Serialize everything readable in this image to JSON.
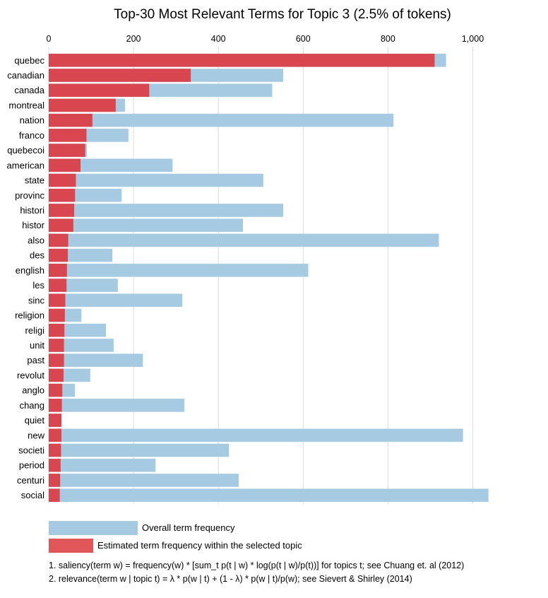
{
  "chart_data": {
    "type": "bar",
    "orientation": "horizontal",
    "stacking": "overlay",
    "title": "Top-30 Most Relevant Terms for Topic 3 (2.5% of tokens)",
    "xlabel": "",
    "ylabel": "",
    "xlim": [
      0,
      1050
    ],
    "xticks": [
      0,
      200,
      400,
      600,
      800,
      1000
    ],
    "xtick_labels": [
      "0",
      "200",
      "400",
      "600",
      "800",
      "1,000"
    ],
    "grid": true,
    "legend_position": "bottom",
    "categories": [
      "quebec",
      "canadian",
      "canada",
      "montreal",
      "nation",
      "franco",
      "quebecoi",
      "american",
      "state",
      "provinc",
      "histori",
      "histor",
      "also",
      "des",
      "english",
      "les",
      "sinc",
      "religion",
      "religi",
      "unit",
      "past",
      "revolut",
      "anglo",
      "chang",
      "quiet",
      "new",
      "societi",
      "period",
      "centuri",
      "social"
    ],
    "series": [
      {
        "name": "Overall term frequency",
        "color": "#a6cae1",
        "values": [
          937,
          553,
          527,
          180,
          813,
          188,
          90,
          292,
          506,
          172,
          553,
          458,
          920,
          150,
          612,
          163,
          315,
          77,
          135,
          153,
          222,
          98,
          62,
          320,
          30,
          977,
          425,
          252,
          448,
          1037
        ]
      },
      {
        "name": "Estimated term frequency within the selected topic",
        "color": "#d8464f",
        "values": [
          910,
          335,
          237,
          158,
          103,
          89,
          86,
          75,
          64,
          62,
          60,
          58,
          46,
          45,
          43,
          42,
          39,
          38,
          37,
          36,
          36,
          35,
          32,
          31,
          30,
          30,
          29,
          28,
          27,
          26
        ]
      }
    ],
    "notes": [
      "1. saliency(term w) = frequency(w) * [sum_t p(t | w) * log(p(t | w)/p(t))] for topics t; see Chuang et. al (2012)",
      "2. relevance(term w | topic t) = λ * p(w | t) + (1 - λ) * p(w | t)/p(w); see Sievert & Shirley (2014)"
    ]
  }
}
